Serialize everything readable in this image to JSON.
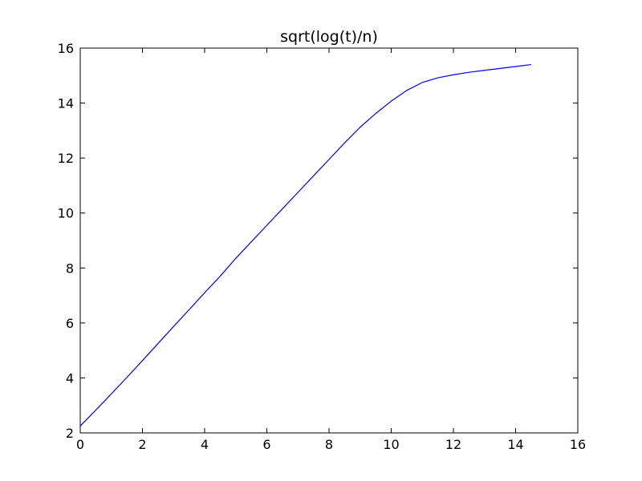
{
  "chart_data": {
    "type": "line",
    "title": "sqrt(log(t)/n)",
    "xlabel": "",
    "ylabel": "",
    "xlim": [
      0,
      16
    ],
    "ylim": [
      2,
      16
    ],
    "x_ticks": [
      0,
      2,
      4,
      6,
      8,
      10,
      12,
      14,
      16
    ],
    "y_ticks": [
      2,
      4,
      6,
      8,
      10,
      12,
      14,
      16
    ],
    "x_tick_labels": [
      "0",
      "2",
      "4",
      "6",
      "8",
      "10",
      "12",
      "14",
      "16"
    ],
    "y_tick_labels": [
      "2",
      "4",
      "6",
      "8",
      "10",
      "12",
      "14",
      "16"
    ],
    "grid": false,
    "legend": "none",
    "series": [
      {
        "color": "#0000ff",
        "x": [
          0,
          0.5,
          1,
          1.5,
          2,
          2.5,
          3,
          3.5,
          4,
          4.5,
          5,
          5.5,
          6,
          6.5,
          7,
          7.5,
          8,
          8.5,
          9,
          9.5,
          10,
          10.5,
          11,
          11.5,
          12,
          12.5,
          13,
          13.5,
          14,
          14.5
        ],
        "y": [
          2.25,
          2.83,
          3.42,
          4.02,
          4.63,
          5.25,
          5.87,
          6.48,
          7.1,
          7.7,
          8.35,
          8.95,
          9.55,
          10.15,
          10.75,
          11.35,
          11.95,
          12.55,
          13.12,
          13.62,
          14.07,
          14.46,
          14.75,
          14.92,
          15.03,
          15.12,
          15.19,
          15.26,
          15.33,
          15.4
        ]
      }
    ]
  }
}
